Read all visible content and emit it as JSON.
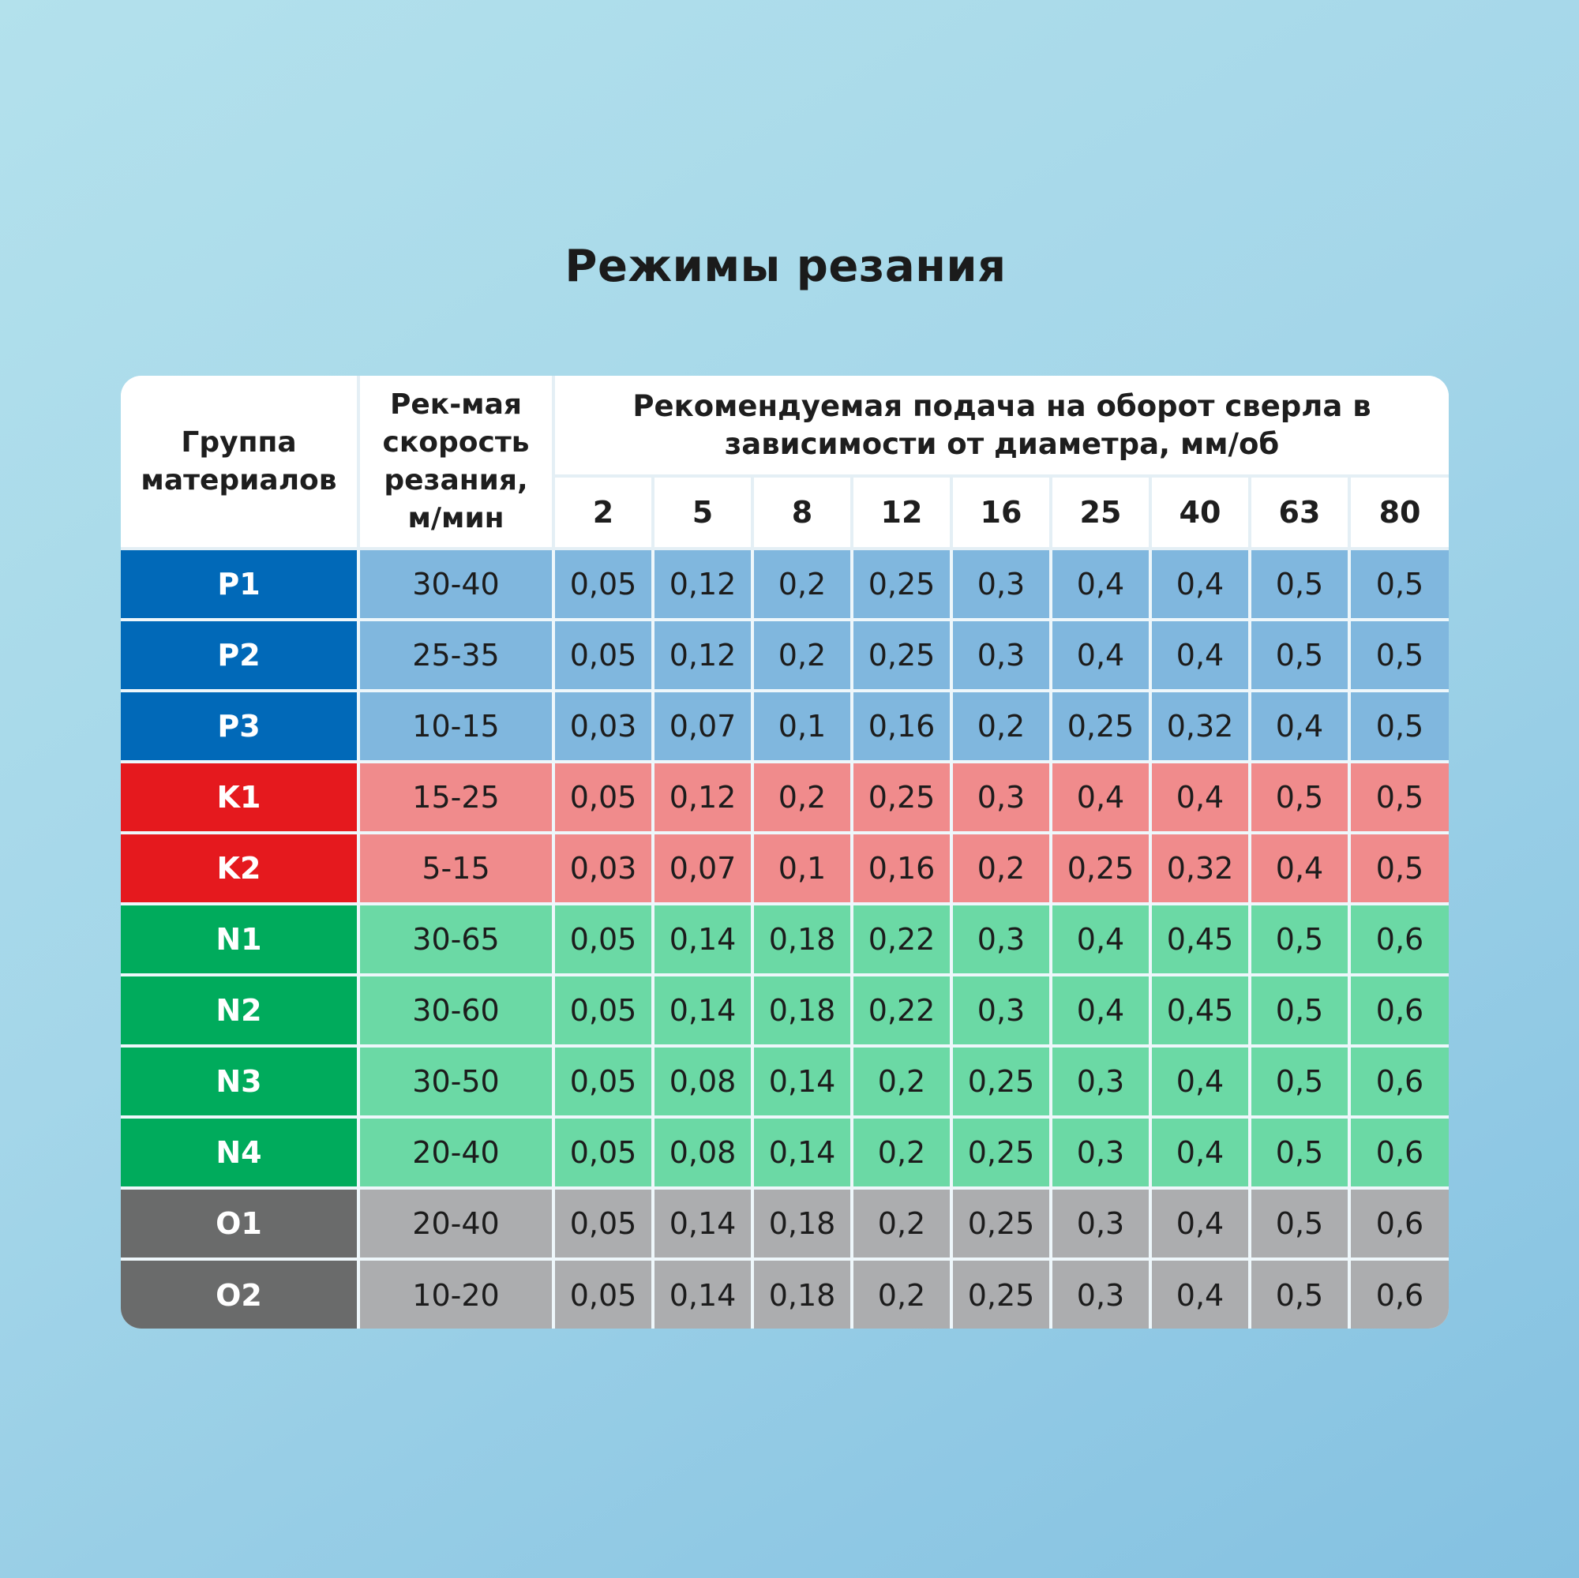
{
  "title": "Режимы резания",
  "table": {
    "header": {
      "group": "Группа материалов",
      "speed": "Рек-мая скорость резания, м/мин",
      "feed": "Рекомендуемая подача на оборот сверла в зависимости от диаметра, мм/об",
      "diameters": [
        "2",
        "5",
        "8",
        "12",
        "16",
        "25",
        "40",
        "63",
        "80"
      ]
    },
    "rows": [
      {
        "group": "P1",
        "speed": "30-40",
        "feeds": [
          "0,05",
          "0,12",
          "0,2",
          "0,25",
          "0,3",
          "0,4",
          "0,4",
          "0,5",
          "0,5"
        ]
      },
      {
        "group": "P2",
        "speed": "25-35",
        "feeds": [
          "0,05",
          "0,12",
          "0,2",
          "0,25",
          "0,3",
          "0,4",
          "0,4",
          "0,5",
          "0,5"
        ]
      },
      {
        "group": "P3",
        "speed": "10-15",
        "feeds": [
          "0,03",
          "0,07",
          "0,1",
          "0,16",
          "0,2",
          "0,25",
          "0,32",
          "0,4",
          "0,5"
        ]
      },
      {
        "group": "K1",
        "speed": "15-25",
        "feeds": [
          "0,05",
          "0,12",
          "0,2",
          "0,25",
          "0,3",
          "0,4",
          "0,4",
          "0,5",
          "0,5"
        ]
      },
      {
        "group": "K2",
        "speed": "5-15",
        "feeds": [
          "0,03",
          "0,07",
          "0,1",
          "0,16",
          "0,2",
          "0,25",
          "0,32",
          "0,4",
          "0,5"
        ]
      },
      {
        "group": "N1",
        "speed": "30-65",
        "feeds": [
          "0,05",
          "0,14",
          "0,18",
          "0,22",
          "0,3",
          "0,4",
          "0,45",
          "0,5",
          "0,6"
        ]
      },
      {
        "group": "N2",
        "speed": "30-60",
        "feeds": [
          "0,05",
          "0,14",
          "0,18",
          "0,22",
          "0,3",
          "0,4",
          "0,45",
          "0,5",
          "0,6"
        ]
      },
      {
        "group": "N3",
        "speed": "30-50",
        "feeds": [
          "0,05",
          "0,08",
          "0,14",
          "0,2",
          "0,25",
          "0,3",
          "0,4",
          "0,5",
          "0,6"
        ]
      },
      {
        "group": "N4",
        "speed": "20-40",
        "feeds": [
          "0,05",
          "0,08",
          "0,14",
          "0,2",
          "0,25",
          "0,3",
          "0,4",
          "0,5",
          "0,6"
        ]
      },
      {
        "group": "O1",
        "speed": "20-40",
        "feeds": [
          "0,05",
          "0,14",
          "0,18",
          "0,2",
          "0,25",
          "0,3",
          "0,4",
          "0,5",
          "0,6"
        ]
      },
      {
        "group": "O2",
        "speed": "10-20",
        "feeds": [
          "0,05",
          "0,14",
          "0,18",
          "0,2",
          "0,25",
          "0,3",
          "0,4",
          "0,5",
          "0,6"
        ]
      }
    ]
  },
  "colors": {
    "P": {
      "group": "#0169b8",
      "cell": "#80b7de"
    },
    "K": {
      "group": "#e5191e",
      "cell": "#f08b8c"
    },
    "N": {
      "group": "#00ab5c",
      "cell": "#6bd9a5"
    },
    "O": {
      "group": "#6a6b6b",
      "cell": "#acadaf"
    }
  }
}
